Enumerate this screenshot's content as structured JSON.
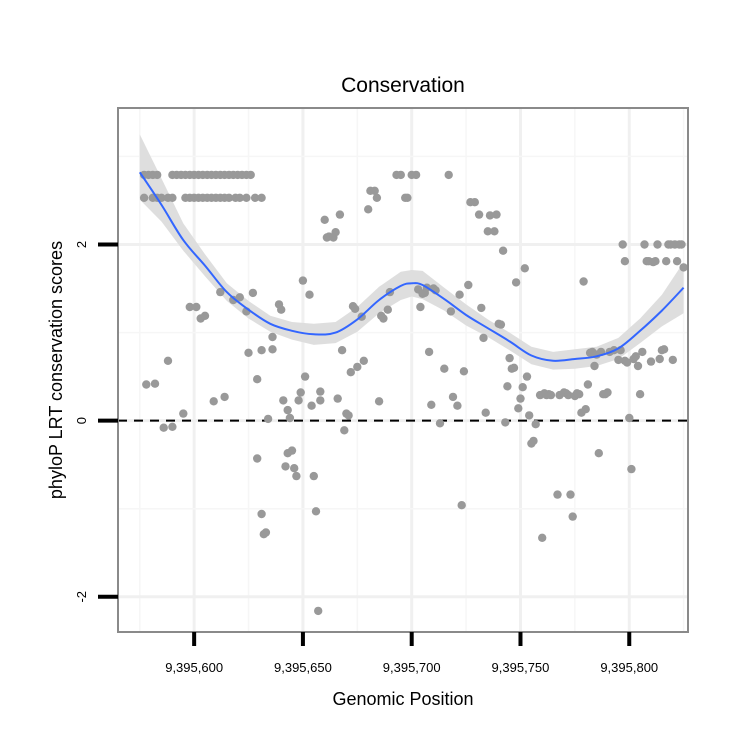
{
  "chart_data": {
    "type": "scatter",
    "title": "Conservation",
    "xlabel": "Genomic Position",
    "ylabel": "phyloP LRT conservation scores",
    "xlim": [
      9395565,
      9395827
    ],
    "ylim": [
      -2.4,
      3.55
    ],
    "x_ticks": [
      {
        "value": 9395600,
        "label": "9,395,600"
      },
      {
        "value": 9395650,
        "label": "9,395,650"
      },
      {
        "value": 9395700,
        "label": "9,395,700"
      },
      {
        "value": 9395750,
        "label": "9,395,750"
      },
      {
        "value": 9395800,
        "label": "9,395,800"
      }
    ],
    "y_ticks": [
      {
        "value": -2,
        "label": "-2"
      },
      {
        "value": 0,
        "label": "0"
      },
      {
        "value": 2,
        "label": "2"
      }
    ],
    "reference_line": {
      "y": 0,
      "style": "dashed"
    },
    "grid": true,
    "point_color": "#999999",
    "smooth_color": "#3366FF",
    "band_color": "#dcdcdc",
    "points": [
      [
        9395577,
        2.79
      ],
      [
        9395579,
        2.79
      ],
      [
        9395581,
        2.79
      ],
      [
        9395583,
        2.79
      ],
      [
        9395590,
        2.79
      ],
      [
        9395592,
        2.79
      ],
      [
        9395594,
        2.79
      ],
      [
        9395596,
        2.79
      ],
      [
        9395598,
        2.79
      ],
      [
        9395600,
        2.79
      ],
      [
        9395602,
        2.79
      ],
      [
        9395604,
        2.79
      ],
      [
        9395606,
        2.79
      ],
      [
        9395608,
        2.79
      ],
      [
        9395610,
        2.79
      ],
      [
        9395612,
        2.79
      ],
      [
        9395614,
        2.79
      ],
      [
        9395616,
        2.79
      ],
      [
        9395618,
        2.79
      ],
      [
        9395620,
        2.79
      ],
      [
        9395622,
        2.79
      ],
      [
        9395624,
        2.79
      ],
      [
        9395626,
        2.79
      ],
      [
        9395577,
        2.53
      ],
      [
        9395581,
        2.53
      ],
      [
        9395583,
        2.53
      ],
      [
        9395585,
        2.53
      ],
      [
        9395588,
        2.53
      ],
      [
        9395590,
        2.53
      ],
      [
        9395596,
        2.53
      ],
      [
        9395598,
        2.53
      ],
      [
        9395600,
        2.53
      ],
      [
        9395602,
        2.53
      ],
      [
        9395604,
        2.53
      ],
      [
        9395606,
        2.53
      ],
      [
        9395608,
        2.53
      ],
      [
        9395610,
        2.53
      ],
      [
        9395612,
        2.53
      ],
      [
        9395614,
        2.53
      ],
      [
        9395616,
        2.53
      ],
      [
        9395619,
        2.53
      ],
      [
        9395621,
        2.53
      ],
      [
        9395624,
        2.53
      ],
      [
        9395628,
        2.53
      ],
      [
        9395631,
        2.53
      ],
      [
        9395578,
        0.41
      ],
      [
        9395582,
        0.42
      ],
      [
        9395586,
        -0.08
      ],
      [
        9395588,
        0.68
      ],
      [
        9395590,
        -0.07
      ],
      [
        9395595,
        0.08
      ],
      [
        9395598,
        1.29
      ],
      [
        9395601,
        1.29
      ],
      [
        9395603,
        1.16
      ],
      [
        9395605,
        1.19
      ],
      [
        9395609,
        0.22
      ],
      [
        9395612,
        1.46
      ],
      [
        9395614,
        0.27
      ],
      [
        9395618,
        1.37
      ],
      [
        9395621,
        1.4
      ],
      [
        9395624,
        1.24
      ],
      [
        9395625,
        0.77
      ],
      [
        9395627,
        1.45
      ],
      [
        9395629,
        0.47
      ],
      [
        9395631,
        0.8
      ],
      [
        9395629,
        -0.43
      ],
      [
        9395631,
        -1.06
      ],
      [
        9395632,
        -1.29
      ],
      [
        9395633,
        -1.27
      ],
      [
        9395634,
        0.02
      ],
      [
        9395636,
        0.95
      ],
      [
        9395636,
        0.81
      ],
      [
        9395639,
        1.32
      ],
      [
        9395640,
        1.26
      ],
      [
        9395641,
        0.23
      ],
      [
        9395642,
        -0.52
      ],
      [
        9395643,
        -0.37
      ],
      [
        9395643,
        0.12
      ],
      [
        9395644,
        0.03
      ],
      [
        9395645,
        -0.34
      ],
      [
        9395646,
        -0.54
      ],
      [
        9395647,
        -0.63
      ],
      [
        9395648,
        0.23
      ],
      [
        9395649,
        0.32
      ],
      [
        9395650,
        1.59
      ],
      [
        9395651,
        0.5
      ],
      [
        9395653,
        1.43
      ],
      [
        9395654,
        0.17
      ],
      [
        9395656,
        -1.03
      ],
      [
        9395655,
        -0.63
      ],
      [
        9395657,
        -2.16
      ],
      [
        9395658,
        0.33
      ],
      [
        9395658,
        0.23
      ],
      [
        9395660,
        2.28
      ],
      [
        9395661,
        2.08
      ],
      [
        9395662,
        2.09
      ],
      [
        9395664,
        2.08
      ],
      [
        9395665,
        2.14
      ],
      [
        9395666,
        0.25
      ],
      [
        9395667,
        2.34
      ],
      [
        9395668,
        0.8
      ],
      [
        9395669,
        -0.11
      ],
      [
        9395670,
        0.08
      ],
      [
        9395671,
        0.06
      ],
      [
        9395672,
        0.55
      ],
      [
        9395673,
        1.3
      ],
      [
        9395674,
        1.27
      ],
      [
        9395675,
        0.61
      ],
      [
        9395677,
        1.18
      ],
      [
        9395678,
        0.68
      ],
      [
        9395680,
        2.4
      ],
      [
        9395681,
        2.61
      ],
      [
        9395683,
        2.61
      ],
      [
        9395684,
        2.53
      ],
      [
        9395685,
        0.22
      ],
      [
        9395686,
        1.19
      ],
      [
        9395687,
        1.16
      ],
      [
        9395689,
        1.26
      ],
      [
        9395690,
        1.46
      ],
      [
        9395693,
        2.79
      ],
      [
        9395695,
        2.79
      ],
      [
        9395697,
        2.53
      ],
      [
        9395698,
        2.53
      ],
      [
        9395700,
        2.79
      ],
      [
        9395702,
        2.79
      ],
      [
        9395703,
        1.49
      ],
      [
        9395704,
        1.29
      ],
      [
        9395705,
        1.44
      ],
      [
        9395706,
        1.45
      ],
      [
        9395707,
        1.51
      ],
      [
        9395708,
        0.78
      ],
      [
        9395709,
        0.18
      ],
      [
        9395710,
        1.5
      ],
      [
        9395711,
        1.48
      ],
      [
        9395713,
        -0.03
      ],
      [
        9395715,
        0.59
      ],
      [
        9395717,
        2.79
      ],
      [
        9395718,
        1.24
      ],
      [
        9395719,
        0.27
      ],
      [
        9395721,
        0.17
      ],
      [
        9395722,
        1.43
      ],
      [
        9395723,
        -0.96
      ],
      [
        9395724,
        0.56
      ],
      [
        9395726,
        1.54
      ],
      [
        9395727,
        2.48
      ],
      [
        9395729,
        2.48
      ],
      [
        9395731,
        2.34
      ],
      [
        9395732,
        1.28
      ],
      [
        9395733,
        0.94
      ],
      [
        9395734,
        0.09
      ],
      [
        9395735,
        2.15
      ],
      [
        9395736,
        2.33
      ],
      [
        9395738,
        2.15
      ],
      [
        9395739,
        2.34
      ],
      [
        9395740,
        1.1
      ],
      [
        9395741,
        1.09
      ],
      [
        9395742,
        1.93
      ],
      [
        9395743,
        -0.02
      ],
      [
        9395744,
        0.39
      ],
      [
        9395745,
        0.71
      ],
      [
        9395746,
        0.59
      ],
      [
        9395747,
        0.6
      ],
      [
        9395748,
        1.57
      ],
      [
        9395749,
        0.14
      ],
      [
        9395750,
        0.25
      ],
      [
        9395751,
        0.38
      ],
      [
        9395752,
        1.73
      ],
      [
        9395753,
        0.5
      ],
      [
        9395754,
        0.06
      ],
      [
        9395755,
        -0.26
      ],
      [
        9395756,
        -0.23
      ],
      [
        9395757,
        -0.04
      ],
      [
        9395759,
        0.29
      ],
      [
        9395760,
        -1.33
      ],
      [
        9395761,
        0.31
      ],
      [
        9395762,
        0.29
      ],
      [
        9395763,
        0.3
      ],
      [
        9395764,
        0.29
      ],
      [
        9395767,
        -0.84
      ],
      [
        9395768,
        0.29
      ],
      [
        9395770,
        0.32
      ],
      [
        9395771,
        0.31
      ],
      [
        9395772,
        0.29
      ],
      [
        9395773,
        -0.84
      ],
      [
        9395774,
        -1.09
      ],
      [
        9395775,
        0.28
      ],
      [
        9395776,
        0.31
      ],
      [
        9395777,
        0.3
      ],
      [
        9395778,
        0.09
      ],
      [
        9395779,
        1.58
      ],
      [
        9395780,
        0.13
      ],
      [
        9395781,
        0.41
      ],
      [
        9395782,
        0.77
      ],
      [
        9395783,
        0.78
      ],
      [
        9395784,
        0.62
      ],
      [
        9395785,
        0.75
      ],
      [
        9395786,
        -0.37
      ],
      [
        9395787,
        0.78
      ],
      [
        9395788,
        0.3
      ],
      [
        9395789,
        0.3
      ],
      [
        9395790,
        0.32
      ],
      [
        9395791,
        0.78
      ],
      [
        9395793,
        0.8
      ],
      [
        9395795,
        0.69
      ],
      [
        9395796,
        0.8
      ],
      [
        9395797,
        2.0
      ],
      [
        9395798,
        1.81
      ],
      [
        9395798,
        0.68
      ],
      [
        9395799,
        0.66
      ],
      [
        9395800,
        0.03
      ],
      [
        9395801,
        -0.55
      ],
      [
        9395802,
        0.7
      ],
      [
        9395803,
        0.73
      ],
      [
        9395804,
        0.62
      ],
      [
        9395805,
        0.3
      ],
      [
        9395806,
        0.78
      ],
      [
        9395807,
        2.0
      ],
      [
        9395808,
        1.81
      ],
      [
        9395809,
        1.81
      ],
      [
        9395810,
        0.67
      ],
      [
        9395811,
        1.8
      ],
      [
        9395812,
        1.81
      ],
      [
        9395813,
        2.0
      ],
      [
        9395814,
        0.7
      ],
      [
        9395815,
        0.8
      ],
      [
        9395816,
        0.81
      ],
      [
        9395817,
        1.81
      ],
      [
        9395818,
        2.0
      ],
      [
        9395819,
        2.0
      ],
      [
        9395820,
        0.69
      ],
      [
        9395821,
        2.0
      ],
      [
        9395822,
        1.81
      ],
      [
        9395823,
        2.0
      ],
      [
        9395824,
        2.0
      ],
      [
        9395825,
        1.74
      ]
    ],
    "smooth": {
      "x": [
        9395575,
        9395585,
        9395595,
        9395605,
        9395615,
        9395625,
        9395635,
        9395645,
        9395655,
        9395665,
        9395675,
        9395685,
        9395695,
        9395700,
        9395705,
        9395715,
        9395725,
        9395735,
        9395745,
        9395755,
        9395765,
        9395775,
        9395785,
        9395795,
        9395805,
        9395815,
        9395825
      ],
      "y": [
        2.82,
        2.45,
        2.05,
        1.76,
        1.46,
        1.26,
        1.1,
        1.02,
        0.98,
        1.0,
        1.15,
        1.37,
        1.53,
        1.56,
        1.54,
        1.38,
        1.2,
        1.05,
        0.9,
        0.74,
        0.68,
        0.7,
        0.73,
        0.82,
        1.02,
        1.25,
        1.51
      ],
      "lower": [
        2.51,
        2.26,
        1.93,
        1.64,
        1.36,
        1.16,
        1.01,
        0.92,
        0.86,
        0.88,
        1.01,
        1.22,
        1.37,
        1.41,
        1.38,
        1.25,
        1.08,
        0.95,
        0.8,
        0.64,
        0.58,
        0.59,
        0.62,
        0.7,
        0.88,
        1.07,
        1.22
      ],
      "upper": [
        3.25,
        2.75,
        2.24,
        1.89,
        1.56,
        1.36,
        1.19,
        1.12,
        1.1,
        1.12,
        1.29,
        1.52,
        1.69,
        1.71,
        1.7,
        1.51,
        1.32,
        1.15,
        1.0,
        0.84,
        0.78,
        0.81,
        0.84,
        0.94,
        1.16,
        1.43,
        1.8
      ]
    }
  }
}
